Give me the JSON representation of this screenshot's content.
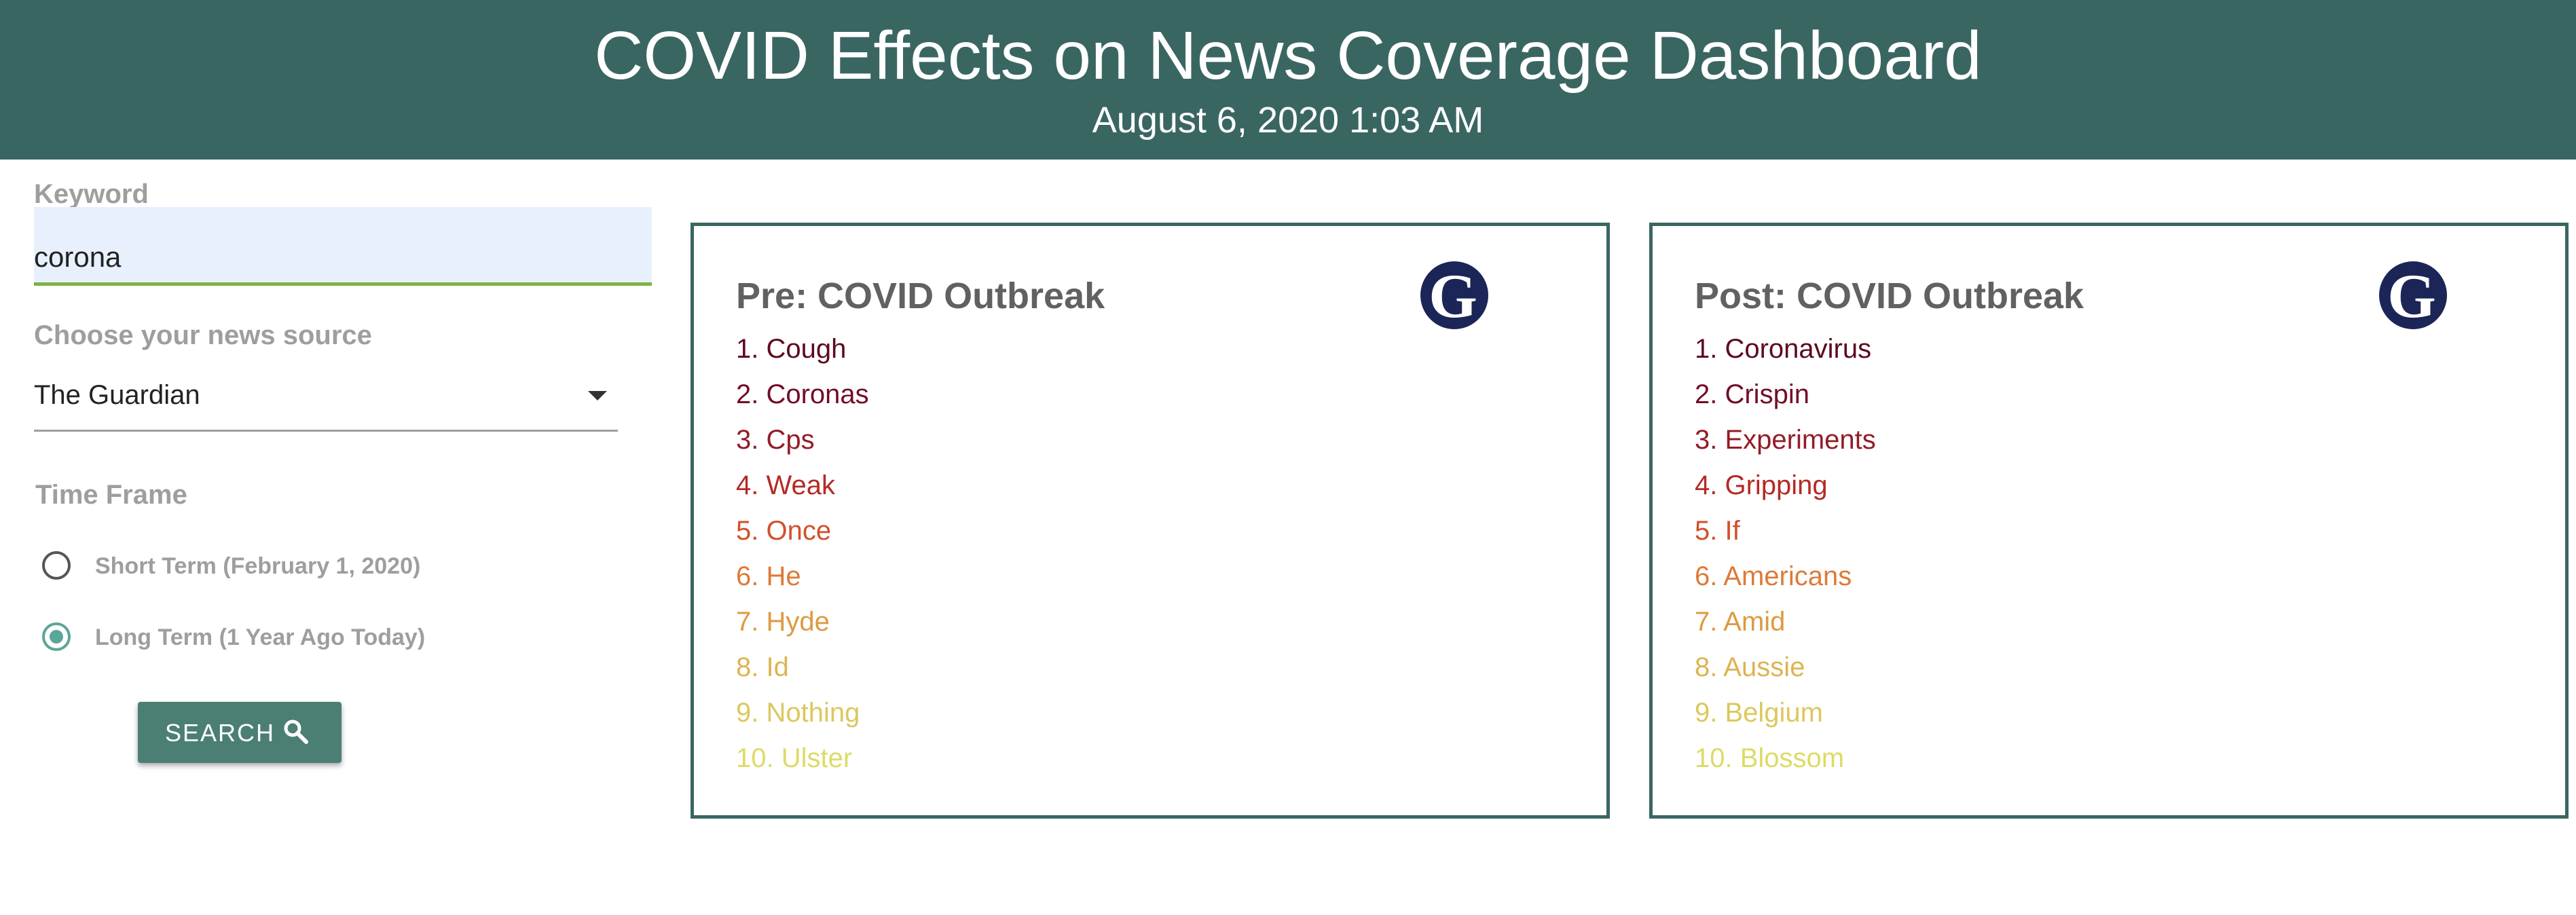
{
  "header": {
    "title": "COVID Effects on News Coverage Dashboard",
    "datetime": "August 6, 2020 1:03 AM"
  },
  "controls": {
    "keyword_label": "Keyword",
    "keyword_value": "corona",
    "source_label": "Choose your news source",
    "source_value": "The Guardian",
    "timeframe_label": "Time Frame",
    "options": [
      {
        "label": "Short Term (February 1, 2020)",
        "checked": false
      },
      {
        "label": "Long Term (1 Year Ago Today)",
        "checked": true
      }
    ],
    "search_label": "SEARCH",
    "search_icon": "search-icon"
  },
  "cards": {
    "pre": {
      "title": "Pre: COVID Outbreak",
      "logo_icon": "guardian-logo-icon",
      "items": [
        "1. Cough",
        "2. Coronas",
        "3. Cps",
        "4. Weak",
        "5. Once",
        "6. He",
        "7. Hyde",
        "8. Id",
        "9. Nothing",
        "10. Ulster"
      ]
    },
    "post": {
      "title": "Post: COVID Outbreak",
      "logo_icon": "guardian-logo-icon",
      "items": [
        "1. Coronavirus",
        "2. Crispin",
        "3. Experiments",
        "4. Gripping",
        "5. If",
        "6. Americans",
        "7. Amid",
        "8. Aussie",
        "9. Belgium",
        "10. Blossom"
      ]
    }
  },
  "colors": {
    "header_bg": "#3a6662",
    "rank_colors": [
      "#5c0a1e",
      "#730d25",
      "#931c26",
      "#b52a26",
      "#d1502c",
      "#dd7a38",
      "#dd9a42",
      "#ddb451",
      "#ddc75d",
      "#dddb66"
    ]
  }
}
